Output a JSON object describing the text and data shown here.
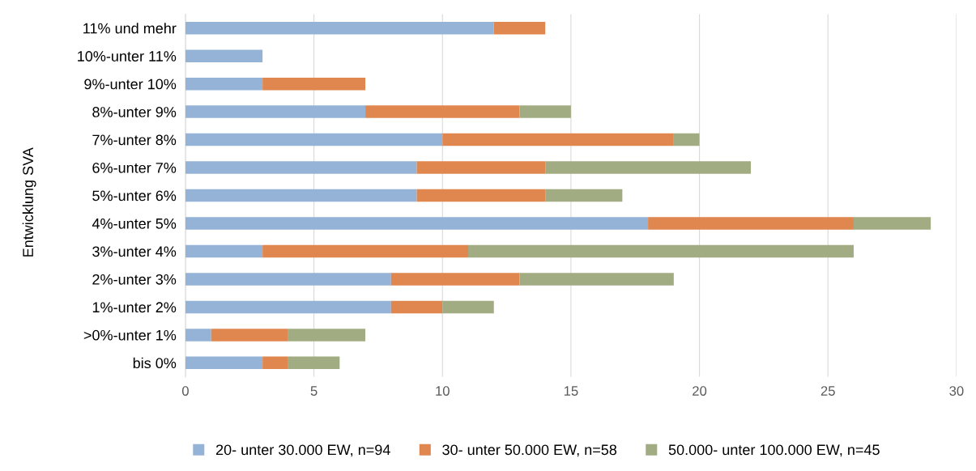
{
  "chart_data": {
    "type": "bar",
    "orientation": "horizontal",
    "stacked": true,
    "ylabel": "Entwicklung SVA",
    "categories": [
      "11% und mehr",
      "10%-unter 11%",
      "9%-unter 10%",
      "8%-unter 9%",
      "7%-unter 8%",
      "6%-unter 7%",
      "5%-unter 6%",
      "4%-unter 5%",
      "3%-unter 4%",
      "2%-unter 3%",
      "1%-unter 2%",
      ">0%-unter 1%",
      "bis 0%"
    ],
    "series": [
      {
        "name": "20- unter 30.000 EW, n=94",
        "color": "#95b3d7",
        "values": [
          12,
          3,
          3,
          7,
          10,
          9,
          9,
          18,
          3,
          8,
          8,
          1,
          3
        ]
      },
      {
        "name": "30- unter 50.000 EW, n=58",
        "color": "#e0864f",
        "values": [
          2,
          0,
          4,
          6,
          9,
          5,
          5,
          8,
          8,
          5,
          2,
          3,
          1
        ]
      },
      {
        "name": "50.000- unter 100.000 EW, n=45",
        "color": "#a2ac82",
        "values": [
          0,
          0,
          0,
          2,
          1,
          8,
          3,
          3,
          15,
          6,
          2,
          3,
          2
        ]
      }
    ],
    "xlim": [
      0,
      30
    ],
    "xticks": [
      0,
      5,
      10,
      15,
      20,
      25,
      30
    ],
    "grid": "x",
    "legend": "bottom"
  }
}
